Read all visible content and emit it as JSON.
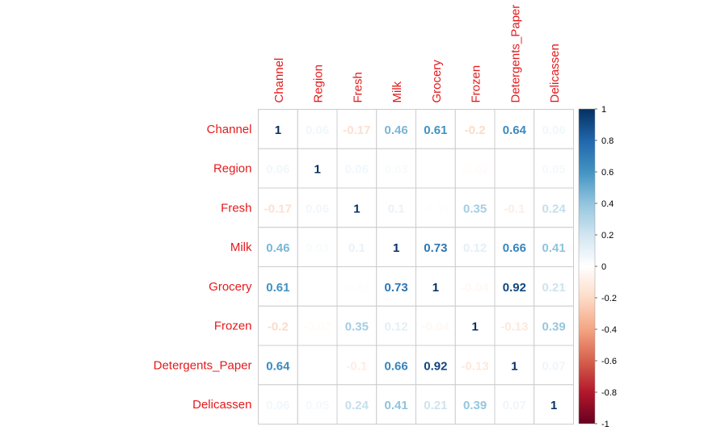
{
  "chart_data": {
    "type": "heatmap",
    "variables": [
      "Channel",
      "Region",
      "Fresh",
      "Milk",
      "Grocery",
      "Frozen",
      "Detergents_Paper",
      "Delicassen"
    ],
    "matrix": [
      [
        1,
        0.06,
        -0.17,
        0.46,
        0.61,
        -0.2,
        0.64,
        0.06
      ],
      [
        0.06,
        1,
        0.06,
        0.03,
        0.0,
        -0.02,
        0.0,
        0.05
      ],
      [
        -0.17,
        0.06,
        1,
        0.1,
        -0.01,
        0.35,
        -0.1,
        0.24
      ],
      [
        0.46,
        0.03,
        0.1,
        1,
        0.73,
        0.12,
        0.66,
        0.41
      ],
      [
        0.61,
        0.01,
        -0.01,
        0.73,
        1,
        -0.04,
        0.92,
        0.21
      ],
      [
        -0.2,
        -0.02,
        0.35,
        0.12,
        -0.04,
        1,
        -0.13,
        0.39
      ],
      [
        0.64,
        0.0,
        -0.1,
        0.66,
        0.92,
        -0.13,
        1,
        0.07
      ],
      [
        0.06,
        0.05,
        0.24,
        0.41,
        0.21,
        0.39,
        0.07,
        1
      ]
    ],
    "labels": [
      [
        "1",
        "0.06",
        "-0.17",
        "0.46",
        "0.61",
        "-0.2",
        "0.64",
        "0.06"
      ],
      [
        "0.06",
        "1",
        "0.06",
        "0.03",
        "",
        "-0.02",
        "",
        "0.05"
      ],
      [
        "-0.17",
        "0.06",
        "1",
        "0.1",
        "-0.01",
        "0.35",
        "-0.1",
        "0.24"
      ],
      [
        "0.46",
        "0.03",
        "0.1",
        "1",
        "0.73",
        "0.12",
        "0.66",
        "0.41"
      ],
      [
        "0.61",
        "",
        "-0.01",
        "0.73",
        "1",
        "-0.04",
        "0.92",
        "0.21"
      ],
      [
        "-0.2",
        "-0.02",
        "0.35",
        "0.12",
        "-0.04",
        "1",
        "-0.13",
        "0.39"
      ],
      [
        "0.64",
        "",
        "-0.1",
        "0.66",
        "0.92",
        "-0.13",
        "1",
        "0.07"
      ],
      [
        "0.06",
        "0.05",
        "0.24",
        "0.41",
        "0.21",
        "0.39",
        "0.07",
        "1"
      ]
    ],
    "colorbar": {
      "range": [
        -1,
        1
      ],
      "ticks": [
        "1",
        "0.8",
        "0.6",
        "0.4",
        "0.2",
        "0",
        "-0.2",
        "-0.4",
        "-0.6",
        "-0.8",
        "-1"
      ],
      "colors": [
        "#67001F",
        "#B2182B",
        "#D6604D",
        "#F4A582",
        "#FDDBC7",
        "#FFFFFF",
        "#D1E5F0",
        "#92C5DE",
        "#4393C3",
        "#2166AC",
        "#053061"
      ]
    },
    "label_color": "#e41a1c",
    "grid_color": "#cccccc"
  }
}
